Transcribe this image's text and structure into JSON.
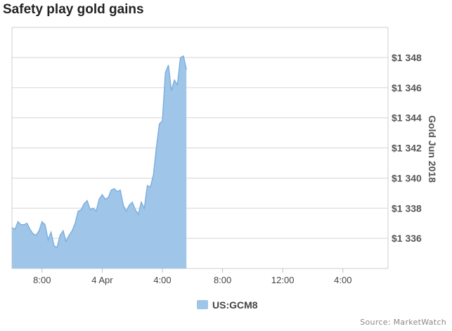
{
  "page": {
    "title": "Safety play gold gains",
    "source": "Source: MarketWatch"
  },
  "chart_data": {
    "type": "area",
    "title": "Safety play gold gains",
    "ylabel": "Gold Jun 2018",
    "xlabel": "",
    "ylim": [
      1334,
      1350
    ],
    "xlim": [
      -4,
      46
    ],
    "x_ticks": [
      {
        "x": 0,
        "label": "8:00"
      },
      {
        "x": 8,
        "label": "4 Apr"
      },
      {
        "x": 16,
        "label": "4:00"
      },
      {
        "x": 24,
        "label": "8:00"
      },
      {
        "x": 32,
        "label": "12:00"
      },
      {
        "x": 40,
        "label": "4:00"
      }
    ],
    "y_ticks": [
      {
        "v": 1336,
        "label": "$1 336"
      },
      {
        "v": 1338,
        "label": "$1 338"
      },
      {
        "v": 1340,
        "label": "$1 340"
      },
      {
        "v": 1342,
        "label": "$1 342"
      },
      {
        "v": 1344,
        "label": "$1 344"
      },
      {
        "v": 1346,
        "label": "$1 346"
      },
      {
        "v": 1348,
        "label": "$1 348"
      }
    ],
    "grid": true,
    "legend_position": "bottom-center",
    "series": [
      {
        "name": "US:GCM8",
        "color": "#9fc5e8",
        "x": [
          -4,
          -3.6,
          -3.2,
          -2.8,
          -2.4,
          -2,
          -1.6,
          -1.2,
          -0.8,
          -0.4,
          0,
          0.4,
          0.8,
          1.2,
          1.6,
          2,
          2.4,
          2.8,
          3.2,
          3.6,
          4,
          4.4,
          4.8,
          5.2,
          5.6,
          6,
          6.4,
          6.8,
          7.2,
          7.6,
          8,
          8.4,
          8.8,
          9.2,
          9.6,
          10,
          10.4,
          10.8,
          11.2,
          11.6,
          12,
          12.4,
          12.8,
          13.2,
          13.6,
          14,
          14.4,
          14.8,
          15.2,
          15.6,
          16,
          16.4,
          16.8,
          17.2,
          17.6,
          18,
          18.4,
          18.8,
          19.2
        ],
        "y": [
          1336.7,
          1336.6,
          1337.1,
          1336.9,
          1336.9,
          1337.0,
          1336.6,
          1336.3,
          1336.2,
          1336.5,
          1337.1,
          1336.9,
          1335.9,
          1336.4,
          1335.5,
          1335.4,
          1336.2,
          1336.5,
          1335.8,
          1336.2,
          1336.5,
          1337.0,
          1337.8,
          1337.9,
          1338.3,
          1338.5,
          1337.9,
          1338.0,
          1337.8,
          1338.6,
          1338.9,
          1338.6,
          1338.7,
          1339.2,
          1339.3,
          1339.1,
          1339.2,
          1338.2,
          1337.8,
          1338.2,
          1338.4,
          1337.9,
          1337.6,
          1338.4,
          1338.0,
          1339.5,
          1339.4,
          1340.2,
          1342.0,
          1343.6,
          1343.8,
          1347.0,
          1347.5,
          1345.8,
          1346.5,
          1346.2,
          1348.0,
          1348.1,
          1347.2
        ]
      }
    ]
  }
}
